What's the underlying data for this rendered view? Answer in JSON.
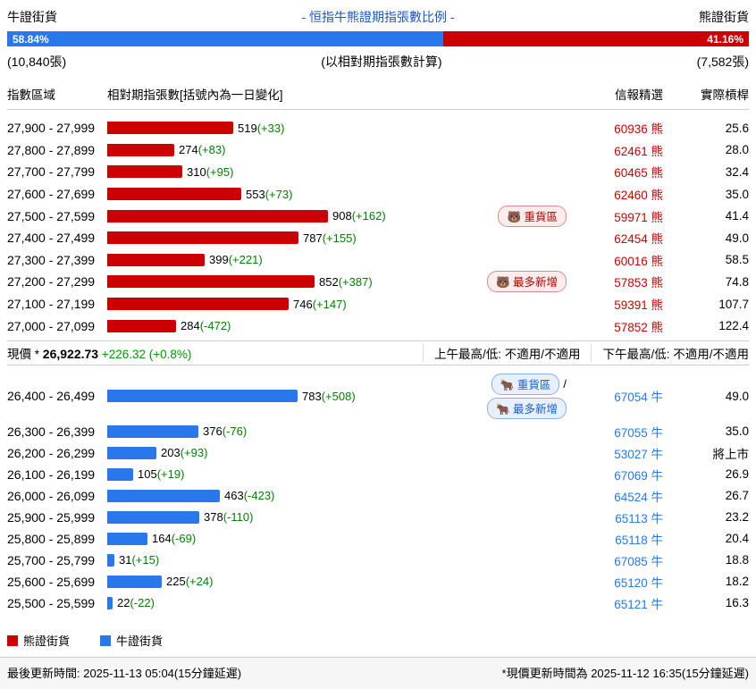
{
  "colors": {
    "bear": "#cc0000",
    "bull": "#2878eb",
    "change_green": "#008000",
    "title_blue": "#1a56c4",
    "price_green": "#009900"
  },
  "header": {
    "left_label": "牛證街貨",
    "center_label": "- 恒指牛熊證期指張數比例 -",
    "right_label": "熊證街貨",
    "bull_pct": "58.84%",
    "bear_pct": "41.16%",
    "left_count": "(10,840張)",
    "center_note": "(以相對期指張數計算)",
    "right_count": "(7,582張)"
  },
  "table_header": {
    "range": "指數區域",
    "bar": "相對期指張數[括號內為一日變化]",
    "code": "信報精選",
    "leverage": "實際槓桿"
  },
  "bear_rows": [
    {
      "range": "27,900 - 27,999",
      "value": 519,
      "change": "(+33)",
      "code": "60936 熊",
      "leverage": "25.6",
      "badges": []
    },
    {
      "range": "27,800 - 27,899",
      "value": 274,
      "change": "(+83)",
      "code": "62461 熊",
      "leverage": "28.0",
      "badges": []
    },
    {
      "range": "27,700 - 27,799",
      "value": 310,
      "change": "(+95)",
      "code": "60465 熊",
      "leverage": "32.4",
      "badges": []
    },
    {
      "range": "27,600 - 27,699",
      "value": 553,
      "change": "(+73)",
      "code": "62460 熊",
      "leverage": "35.0",
      "badges": []
    },
    {
      "range": "27,500 - 27,599",
      "value": 908,
      "change": "(+162)",
      "code": "59971 熊",
      "leverage": "41.4",
      "badges": [
        {
          "icon": "🐻",
          "label": "重貨區",
          "suffix": ""
        }
      ]
    },
    {
      "range": "27,400 - 27,499",
      "value": 787,
      "change": "(+155)",
      "code": "62454 熊",
      "leverage": "49.0",
      "badges": []
    },
    {
      "range": "27,300 - 27,399",
      "value": 399,
      "change": "(+221)",
      "code": "60016 熊",
      "leverage": "58.5",
      "badges": []
    },
    {
      "range": "27,200 - 27,299",
      "value": 852,
      "change": "(+387)",
      "code": "57853 熊",
      "leverage": "74.8",
      "badges": [
        {
          "icon": "🐻",
          "label": "最多新增",
          "suffix": ""
        }
      ]
    },
    {
      "range": "27,100 - 27,199",
      "value": 746,
      "change": "(+147)",
      "code": "59391 熊",
      "leverage": "107.7",
      "badges": []
    },
    {
      "range": "27,000 - 27,099",
      "value": 284,
      "change": "(-472)",
      "code": "57852 熊",
      "leverage": "122.4",
      "badges": []
    }
  ],
  "price_row": {
    "label": "現價 *",
    "price": "26,922.73",
    "change": "+226.32 (+0.8%)",
    "am": "上午最高/低: 不適用/不適用",
    "pm": "下午最高/低: 不適用/不適用"
  },
  "bull_rows": [
    {
      "range": "26,400 - 26,499",
      "value": 783,
      "change": "(+508)",
      "code": "67054 牛",
      "leverage": "49.0",
      "badges": [
        {
          "icon": "🐂",
          "label": "重貨區",
          "suffix": "/"
        },
        {
          "icon": "🐂",
          "label": "最多新增",
          "suffix": ""
        }
      ]
    },
    {
      "range": "26,300 - 26,399",
      "value": 376,
      "change": "(-76)",
      "code": "67055 牛",
      "leverage": "35.0",
      "badges": []
    },
    {
      "range": "26,200 - 26,299",
      "value": 203,
      "change": "(+93)",
      "code": "53027 牛",
      "leverage": "將上市",
      "badges": []
    },
    {
      "range": "26,100 - 26,199",
      "value": 105,
      "change": "(+19)",
      "code": "67069 牛",
      "leverage": "26.9",
      "badges": []
    },
    {
      "range": "26,000 - 26,099",
      "value": 463,
      "change": "(-423)",
      "code": "64524 牛",
      "leverage": "26.7",
      "badges": []
    },
    {
      "range": "25,900 - 25,999",
      "value": 378,
      "change": "(-110)",
      "code": "65113 牛",
      "leverage": "23.2",
      "badges": []
    },
    {
      "range": "25,800 - 25,899",
      "value": 164,
      "change": "(-69)",
      "code": "65118 牛",
      "leverage": "20.4",
      "badges": []
    },
    {
      "range": "25,700 - 25,799",
      "value": 31,
      "change": "(+15)",
      "code": "67085 牛",
      "leverage": "18.8",
      "badges": []
    },
    {
      "range": "25,600 - 25,699",
      "value": 225,
      "change": "(+24)",
      "code": "65120 牛",
      "leverage": "18.2",
      "badges": []
    },
    {
      "range": "25,500 - 25,599",
      "value": 22,
      "change": "(-22)",
      "code": "65121 牛",
      "leverage": "16.3",
      "badges": []
    }
  ],
  "legend": {
    "bear": "熊證街貨",
    "bull": "牛證街貨"
  },
  "footer": {
    "left": "最後更新時間: 2025-11-13 05:04(15分鐘延遲)",
    "right": "*現價更新時間為 2025-11-12 16:35(15分鐘延遲)"
  },
  "chart_data": {
    "type": "bar",
    "orientation": "horizontal",
    "title": "- 恒指牛熊證期指張數比例 -",
    "subtitle": "(以相對期指張數計算)",
    "bull_bear_ratio": {
      "bull_pct": 58.84,
      "bear_pct": 41.16,
      "bull_total_lots": "(10,840張)",
      "bear_total_lots": "(7,582張)"
    },
    "xlabel": "相對期指張數[括號內為一日變化]",
    "ylabel": "指數區域",
    "current_price": 26922.73,
    "current_price_change": "+226.32 (+0.8%)",
    "series": [
      {
        "name": "熊證街貨",
        "color": "#cc0000",
        "categories": [
          "27,900 - 27,999",
          "27,800 - 27,899",
          "27,700 - 27,799",
          "27,600 - 27,699",
          "27,500 - 27,599",
          "27,400 - 27,499",
          "27,300 - 27,399",
          "27,200 - 27,299",
          "27,100 - 27,199",
          "27,000 - 27,099"
        ],
        "values": [
          519,
          274,
          310,
          553,
          908,
          787,
          399,
          852,
          746,
          284
        ],
        "one_day_change": [
          33,
          83,
          95,
          73,
          162,
          155,
          221,
          387,
          147,
          -472
        ],
        "codes": [
          "60936 熊",
          "62461 熊",
          "60465 熊",
          "62460 熊",
          "59971 熊",
          "62454 熊",
          "60016 熊",
          "57853 熊",
          "59391 熊",
          "57852 熊"
        ],
        "effective_leverage": [
          "25.6",
          "28.0",
          "32.4",
          "35.0",
          "41.4",
          "49.0",
          "58.5",
          "74.8",
          "107.7",
          "122.4"
        ],
        "annotations": {
          "27,500 - 27,599": "重貨區",
          "27,200 - 27,299": "最多新增"
        }
      },
      {
        "name": "牛證街貨",
        "color": "#2878eb",
        "categories": [
          "26,400 - 26,499",
          "26,300 - 26,399",
          "26,200 - 26,299",
          "26,100 - 26,199",
          "26,000 - 26,099",
          "25,900 - 25,999",
          "25,800 - 25,899",
          "25,700 - 25,799",
          "25,600 - 25,699",
          "25,500 - 25,599"
        ],
        "values": [
          783,
          376,
          203,
          105,
          463,
          378,
          164,
          31,
          225,
          22
        ],
        "one_day_change": [
          508,
          -76,
          93,
          19,
          -423,
          -110,
          -69,
          15,
          24,
          -22
        ],
        "codes": [
          "67054 牛",
          "67055 牛",
          "53027 牛",
          "67069 牛",
          "64524 牛",
          "65113 牛",
          "65118 牛",
          "67085 牛",
          "65120 牛",
          "65121 牛"
        ],
        "effective_leverage": [
          "49.0",
          "35.0",
          "將上市",
          "26.9",
          "26.7",
          "23.2",
          "20.4",
          "18.8",
          "18.2",
          "16.3"
        ],
        "annotations": {
          "26,400 - 26,499": "重貨區 / 最多新增"
        }
      }
    ]
  }
}
